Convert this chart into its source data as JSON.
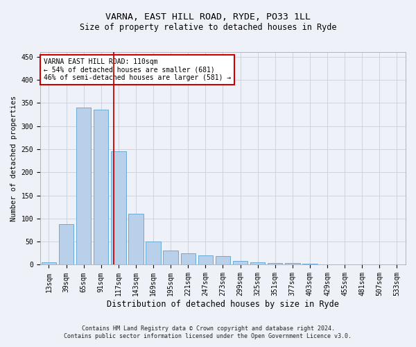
{
  "title1": "VARNA, EAST HILL ROAD, RYDE, PO33 1LL",
  "title2": "Size of property relative to detached houses in Ryde",
  "xlabel": "Distribution of detached houses by size in Ryde",
  "ylabel": "Number of detached properties",
  "categories": [
    "13sqm",
    "39sqm",
    "65sqm",
    "91sqm",
    "117sqm",
    "143sqm",
    "169sqm",
    "195sqm",
    "221sqm",
    "247sqm",
    "273sqm",
    "299sqm",
    "325sqm",
    "351sqm",
    "377sqm",
    "403sqm",
    "429sqm",
    "455sqm",
    "481sqm",
    "507sqm",
    "533sqm"
  ],
  "values": [
    5,
    88,
    340,
    335,
    245,
    110,
    50,
    30,
    25,
    20,
    18,
    8,
    5,
    4,
    3,
    2,
    1,
    1,
    0,
    0,
    0
  ],
  "bar_color": "#b8d0ea",
  "bar_edge_color": "#6aaad4",
  "vline_x": 3.72,
  "vline_color": "#cc0000",
  "annotation_text": "VARNA EAST HILL ROAD: 110sqm\n← 54% of detached houses are smaller (681)\n46% of semi-detached houses are larger (581) →",
  "annotation_box_color": "white",
  "annotation_box_edge": "#cc0000",
  "footnote1": "Contains HM Land Registry data © Crown copyright and database right 2024.",
  "footnote2": "Contains public sector information licensed under the Open Government Licence v3.0.",
  "ylim": [
    0,
    460
  ],
  "grid_color": "#c8d0dc",
  "background_color": "#eef2f8",
  "title1_fontsize": 9.5,
  "title2_fontsize": 8.5,
  "xlabel_fontsize": 8.5,
  "ylabel_fontsize": 7.5,
  "tick_fontsize": 7,
  "annot_fontsize": 7,
  "footnote_fontsize": 6
}
